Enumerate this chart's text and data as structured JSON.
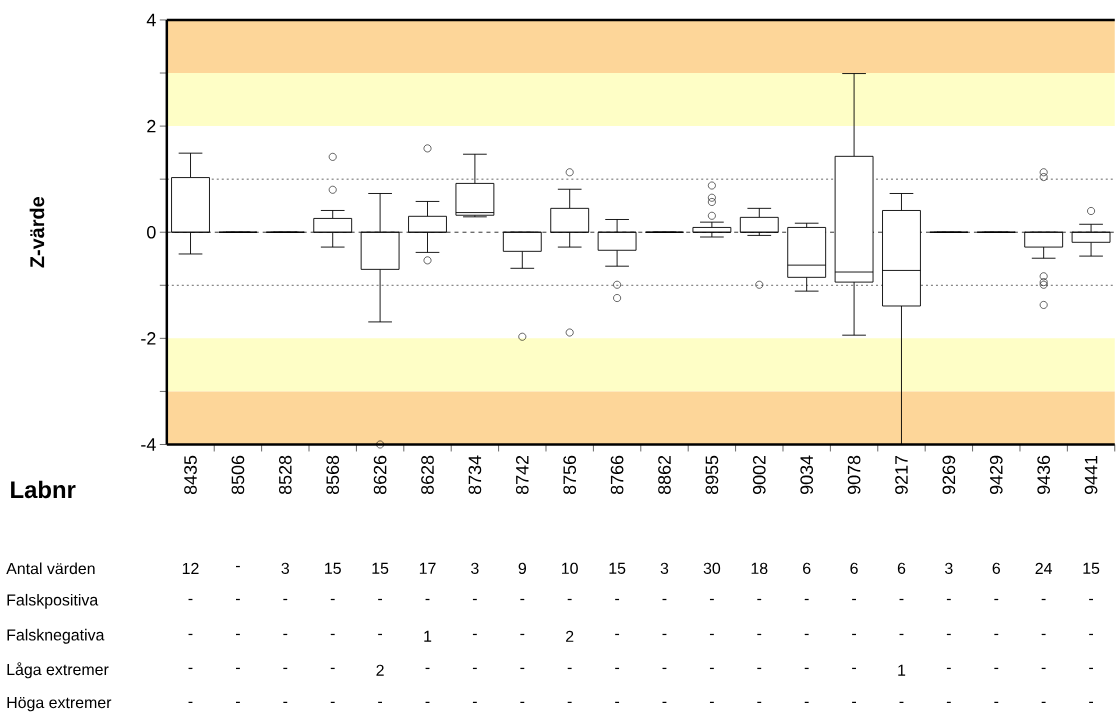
{
  "chart_data": {
    "type": "box",
    "xlabel": "Labnr",
    "ylabel": "Z-värde",
    "categories": [
      "8435",
      "8506",
      "8528",
      "8568",
      "8626",
      "8628",
      "8734",
      "8742",
      "8756",
      "8766",
      "8862",
      "8955",
      "9002",
      "9034",
      "9078",
      "9217",
      "9269",
      "9429",
      "9436",
      "9441"
    ],
    "boxes": [
      {
        "low": -0.41,
        "q1": 0,
        "median": 0,
        "q3": 1.03,
        "high": 1.49
      },
      {
        "low": 0,
        "q1": 0,
        "median": 0,
        "q3": 0,
        "high": 0
      },
      {
        "low": 0,
        "q1": 0,
        "median": 0,
        "q3": 0,
        "high": 0
      },
      {
        "low": -0.28,
        "q1": 0,
        "median": 0,
        "q3": 0.26,
        "high": 0.41,
        "outliers": [
          1.42,
          0.8
        ]
      },
      {
        "low": -1.69,
        "q1": -0.7,
        "median": 0,
        "q3": 0,
        "high": 0.73,
        "outliers": [
          -4
        ]
      },
      {
        "low": -0.38,
        "q1": 0,
        "median": 0,
        "q3": 0.3,
        "high": 0.58,
        "outliers": [
          1.58,
          -0.53
        ]
      },
      {
        "low": 0.29,
        "q1": 0.32,
        "median": 0.37,
        "q3": 0.92,
        "high": 1.47
      },
      {
        "low": -0.68,
        "q1": -0.36,
        "median": 0,
        "q3": 0,
        "high": 0,
        "outliers": [
          -1.97
        ]
      },
      {
        "low": -0.28,
        "q1": 0,
        "median": 0,
        "q3": 0.45,
        "high": 0.81,
        "outliers": [
          1.13,
          -1.89
        ]
      },
      {
        "low": -0.64,
        "q1": -0.34,
        "median": 0,
        "q3": 0,
        "high": 0.24,
        "outliers": [
          -0.99,
          -1.24
        ]
      },
      {
        "low": 0,
        "q1": 0,
        "median": 0,
        "q3": 0,
        "high": 0
      },
      {
        "low": -0.09,
        "q1": 0,
        "median": 0,
        "q3": 0.09,
        "high": 0.19,
        "outliers": [
          0.88,
          0.65,
          0.57,
          0.31
        ]
      },
      {
        "low": -0.06,
        "q1": 0,
        "median": 0,
        "q3": 0.28,
        "high": 0.45,
        "outliers": [
          -0.99
        ]
      },
      {
        "low": -1.11,
        "q1": -0.85,
        "median": -0.62,
        "q3": 0.09,
        "high": 0.17
      },
      {
        "low": -1.94,
        "q1": -0.94,
        "median": -0.75,
        "q3": 1.43,
        "high": 2.99
      },
      {
        "low": -4,
        "q1": -1.39,
        "median": -0.72,
        "q3": 0.41,
        "high": 0.73
      },
      {
        "low": 0,
        "q1": 0,
        "median": 0,
        "q3": 0,
        "high": 0
      },
      {
        "low": 0,
        "q1": 0,
        "median": 0,
        "q3": 0,
        "high": 0
      },
      {
        "low": -0.49,
        "q1": -0.28,
        "median": 0,
        "q3": 0,
        "high": 0,
        "outliers": [
          1.13,
          1.04,
          -0.83,
          -0.94,
          -0.99,
          -1.37
        ]
      },
      {
        "low": -0.45,
        "q1": -0.19,
        "median": 0,
        "q3": 0,
        "high": 0.15,
        "outliers": [
          0.4
        ]
      }
    ],
    "ylim": [
      -4,
      4
    ],
    "yticks": [
      -4,
      {
        "value": -3,
        "label": null
      },
      -2,
      {
        "value": -1,
        "label": null
      },
      0,
      {
        "value": 1,
        "label": null
      },
      2,
      {
        "value": 3,
        "label": null
      },
      4
    ],
    "grid": false,
    "marker": "circle",
    "ref_lines": [
      {
        "axis": "y",
        "value": 1,
        "color": "#404040",
        "line_style": "dotted"
      },
      {
        "axis": "y",
        "value": 0,
        "color": "#000000",
        "line_style": "dashed"
      },
      {
        "axis": "y",
        "value": -1,
        "color": "#404040",
        "line_style": "dotted"
      }
    ],
    "bands": [
      {
        "axis": "y",
        "from": 3,
        "to": 4,
        "color": "#fdd699"
      },
      {
        "axis": "y",
        "from": 2,
        "to": 3,
        "color": "#fefec6"
      },
      {
        "axis": "y",
        "from": -3,
        "to": -2,
        "color": "#fefec6"
      },
      {
        "axis": "y",
        "from": -4,
        "to": -3,
        "color": "#fdd699"
      }
    ],
    "annotations": [
      "Antal värden",
      "12",
      "-",
      "3",
      "15",
      "15",
      "17",
      "3",
      "9",
      "10",
      "15",
      "3",
      "30",
      "18",
      "6",
      "6",
      "6",
      "3",
      "6",
      "24",
      "15",
      "Falskpositiva",
      "-",
      "-",
      "-",
      "-",
      "-",
      "-",
      "-",
      "-",
      "-",
      "-",
      "-",
      "-",
      "-",
      "-",
      "-",
      "-",
      "-",
      "-",
      "-",
      "-",
      "Falsknegativa",
      "-",
      "-",
      "-",
      "-",
      "-",
      "1",
      "-",
      "-",
      "2",
      "-",
      "-",
      "-",
      "-",
      "-",
      "-",
      "-",
      "-",
      "-",
      "-",
      "-",
      "Låga extremer",
      "-",
      "-",
      "-",
      "-",
      "2",
      "-",
      "-",
      "-",
      "-",
      "-",
      "-",
      "-",
      "-",
      "-",
      "-",
      "1",
      "-",
      "-",
      "-",
      "-",
      "Höga extremer",
      "-",
      "-",
      "-",
      "-",
      "-",
      "-",
      "-",
      "-",
      "-",
      "-",
      "-",
      "-",
      "-",
      "-",
      "-",
      "-",
      "-",
      "-",
      "-",
      "-"
    ]
  }
}
